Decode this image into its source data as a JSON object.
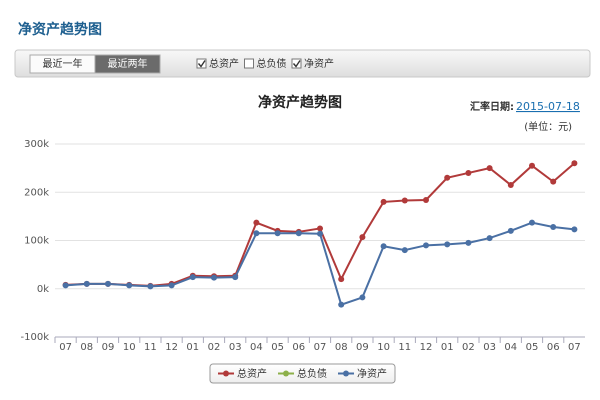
{
  "header": {
    "title": "净资产趋势图"
  },
  "toolbar": {
    "buttons": [
      {
        "label": "最近一年",
        "active": false
      },
      {
        "label": "最近两年",
        "active": true
      }
    ],
    "checkboxes": [
      {
        "label": "总资产",
        "checked": true
      },
      {
        "label": "总负债",
        "checked": false
      },
      {
        "label": "净资产",
        "checked": true
      }
    ]
  },
  "chart_data": {
    "type": "line",
    "title": "净资产趋势图",
    "rate_date_label": "汇率日期:",
    "rate_date": "2015-07-18",
    "unit_label": "(单位：元)",
    "categories": [
      "07",
      "08",
      "09",
      "10",
      "11",
      "12",
      "01",
      "02",
      "03",
      "04",
      "05",
      "06",
      "07",
      "08",
      "09",
      "10",
      "11",
      "12",
      "01",
      "02",
      "03",
      "04",
      "05",
      "06",
      "07"
    ],
    "series": [
      {
        "name": "总资产",
        "color": "#b13a3a",
        "visible": true,
        "values": [
          8000,
          10000,
          10000,
          8000,
          6000,
          10000,
          27000,
          26000,
          27000,
          137000,
          120000,
          118000,
          125000,
          20000,
          107000,
          180000,
          183000,
          184000,
          230000,
          240000,
          250000,
          215000,
          255000,
          222000,
          260000
        ]
      },
      {
        "name": "总负债",
        "color": "#8db04a",
        "visible": false,
        "values": [
          null,
          null,
          null,
          null,
          null,
          null,
          null,
          null,
          null,
          null,
          null,
          null,
          null,
          null,
          null,
          null,
          null,
          null,
          null,
          null,
          null,
          null,
          null,
          null,
          null
        ]
      },
      {
        "name": "净资产",
        "color": "#4a70a4",
        "visible": true,
        "values": [
          7000,
          10000,
          10000,
          7000,
          5000,
          7000,
          24000,
          23000,
          24000,
          115000,
          115000,
          115000,
          114000,
          -33000,
          -18000,
          88000,
          80000,
          90000,
          92000,
          95000,
          105000,
          120000,
          137000,
          128000,
          123000
        ]
      }
    ],
    "ylim": [
      -100000,
      300000
    ],
    "yticks": [
      {
        "value": -100000,
        "label": "-100k"
      },
      {
        "value": 0,
        "label": "0k"
      },
      {
        "value": 100000,
        "label": "100k"
      },
      {
        "value": 200000,
        "label": "200k"
      },
      {
        "value": 300000,
        "label": "300k"
      }
    ],
    "grid": true,
    "legend": "bottom"
  }
}
